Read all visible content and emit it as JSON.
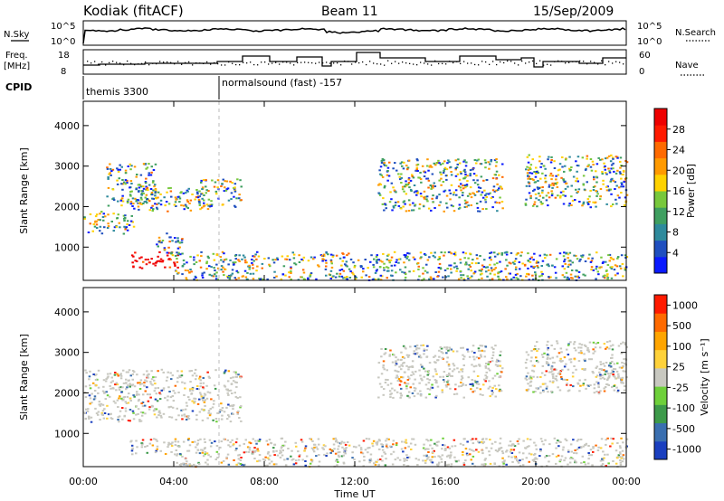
{
  "header": {
    "station": "Kodiak (fitACF)",
    "beam": "Beam 11",
    "date": "15/Sep/2009"
  },
  "noise_panel": {
    "left_label": "N.Sky",
    "right_label": "N.Search",
    "left_ticks": [
      "10^5",
      "10^0"
    ],
    "right_ticks": [
      "10^5",
      "10^0"
    ]
  },
  "freq_panel": {
    "left_label_line1": "Freq.",
    "left_label_line2": "[MHz]",
    "right_label": "Nave",
    "left_ticks": [
      "18",
      "8"
    ],
    "right_ticks": [
      "60",
      "0"
    ]
  },
  "cpid": {
    "label": "CPID",
    "modes": [
      {
        "name": "themis 3300",
        "start_hour": 0
      },
      {
        "name": "normalsound (fast) -157",
        "start_hour": 6
      }
    ]
  },
  "chart_data": [
    {
      "type": "heatmap",
      "quantity": "Power",
      "ylabel": "Slant Range [km]",
      "ylim": [
        180,
        4600
      ],
      "yticks": [
        1000,
        2000,
        3000,
        4000
      ],
      "xlim": [
        0,
        24
      ],
      "colorbar": {
        "label": "Power [dB]",
        "ticks": [
          "4",
          "8",
          "12",
          "16",
          "20",
          "24",
          "28"
        ],
        "colors": [
          "#0a1aff",
          "#1f4fbf",
          "#2e8a9c",
          "#3f9f60",
          "#78c83c",
          "#ffd200",
          "#ff9a00",
          "#ff6a00",
          "#ff1a00",
          "#ee0000"
        ]
      },
      "echo_regions": [
        {
          "t0": 0.0,
          "t1": 2.2,
          "r0": 1350,
          "r1": 1900,
          "level": "20-24 dB"
        },
        {
          "t0": 1.0,
          "t1": 3.2,
          "r0": 2000,
          "r1": 3100,
          "level": "8-16 dB"
        },
        {
          "t0": 2.0,
          "t1": 5.5,
          "r0": 1900,
          "r1": 2500,
          "level": "16-28 dB"
        },
        {
          "t0": 2.0,
          "t1": 4.2,
          "r0": 500,
          "r1": 900,
          "level": ">28 dB"
        },
        {
          "t0": 3.2,
          "t1": 4.4,
          "r0": 800,
          "r1": 1400,
          "level": "24-28 dB"
        },
        {
          "t0": 5.0,
          "t1": 7.0,
          "r0": 2000,
          "r1": 2700,
          "level": "8-16 dB"
        },
        {
          "t0": 4.0,
          "t1": 24.0,
          "r0": 200,
          "r1": 900,
          "level": "8-28 dB"
        },
        {
          "t0": 13.0,
          "t1": 18.5,
          "r0": 1900,
          "r1": 3200,
          "level": "8-20 dB"
        },
        {
          "t0": 19.5,
          "t1": 24.0,
          "r0": 2000,
          "r1": 3300,
          "level": "8-16 dB"
        }
      ]
    },
    {
      "type": "heatmap",
      "quantity": "Velocity",
      "xlabel": "Time UT",
      "ylabel": "Slant Range [km]",
      "ylim": [
        180,
        4600
      ],
      "yticks": [
        1000,
        2000,
        3000,
        4000
      ],
      "xlim": [
        0,
        24
      ],
      "xticks": [
        "00:00",
        "04:00",
        "08:00",
        "12:00",
        "16:00",
        "20:00",
        "00:00"
      ],
      "colorbar": {
        "label": "Velocity [m s⁻¹]",
        "ticks": [
          "1000",
          "500",
          "100",
          "25",
          "-25",
          "-100",
          "-500",
          "-1000"
        ],
        "colors": [
          "#1a3fbf",
          "#3a6fb0",
          "#3d9a4a",
          "#6ed03a",
          "#c8c8c0",
          "#ffd23a",
          "#ffa500",
          "#ff6a00",
          "#ff1a00"
        ]
      },
      "echo_regions": [
        {
          "t0": 0.0,
          "t1": 7.0,
          "r0": 1300,
          "r1": 2600,
          "level": "-25 to 25 m/s"
        },
        {
          "t0": 2.0,
          "t1": 4.2,
          "r0": 500,
          "r1": 900,
          "level": "-25 to 100 m/s"
        },
        {
          "t0": 4.0,
          "t1": 24.0,
          "r0": 200,
          "r1": 900,
          "level": "-100 to 100 m/s"
        },
        {
          "t0": 13.0,
          "t1": 18.5,
          "r0": 1900,
          "r1": 3200,
          "level": "-25 to 25 m/s"
        },
        {
          "t0": 19.5,
          "t1": 24.0,
          "r0": 2000,
          "r1": 3300,
          "level": "-25 to 25 m/s"
        },
        {
          "t0": 22.8,
          "t1": 23.8,
          "r0": 2300,
          "r1": 2800,
          "level": "-1000 to 100 m/s"
        }
      ]
    }
  ]
}
